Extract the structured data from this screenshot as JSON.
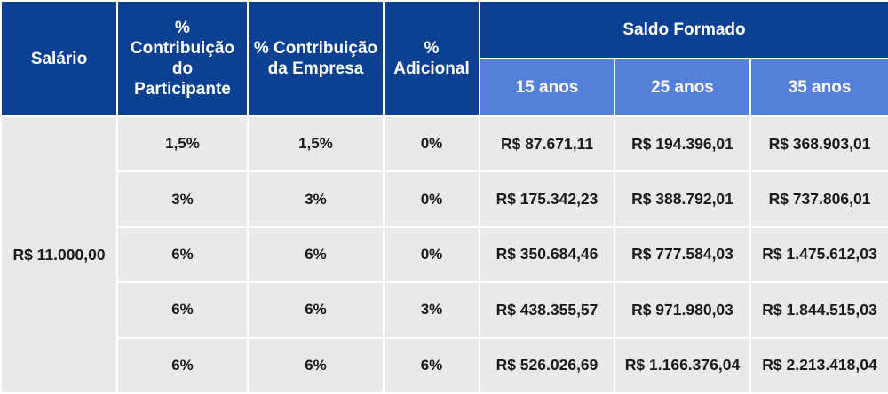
{
  "headers": {
    "salario": "Salário",
    "contrib_participante_line1": "% Contribuição",
    "contrib_participante_line2": "do Participante",
    "contrib_empresa_line1": "% Contribuição",
    "contrib_empresa_line2": "da Empresa",
    "adicional_line1": "%",
    "adicional_line2": "Adicional",
    "saldo_formado": "Saldo Formado",
    "anos_15": "15 anos",
    "anos_25": "25 anos",
    "anos_35": "35 anos"
  },
  "salario": "R$ 11.000,00",
  "rows": [
    {
      "participante": "1,5%",
      "empresa": "1,5%",
      "adicional": "0%",
      "anos_15": "R$ 87.671,11",
      "anos_25": "R$ 194.396,01",
      "anos_35": "R$ 368.903,01"
    },
    {
      "participante": "3%",
      "empresa": "3%",
      "adicional": "0%",
      "anos_15": "R$ 175.342,23",
      "anos_25": "R$ 388.792,01",
      "anos_35": "R$ 737.806,01"
    },
    {
      "participante": "6%",
      "empresa": "6%",
      "adicional": "0%",
      "anos_15": "R$ 350.684,46",
      "anos_25": "R$ 777.584,03",
      "anos_35": "R$ 1.475.612,03"
    },
    {
      "participante": "6%",
      "empresa": "6%",
      "adicional": "3%",
      "anos_15": "R$ 438.355,57",
      "anos_25": "R$ 971.980,03",
      "anos_35": "R$ 1.844.515,03"
    },
    {
      "participante": "6%",
      "empresa": "6%",
      "adicional": "6%",
      "anos_15": "R$ 526.026,69",
      "anos_25": "R$ 1.166.376,04",
      "anos_35": "R$ 2.213.418,04"
    }
  ]
}
